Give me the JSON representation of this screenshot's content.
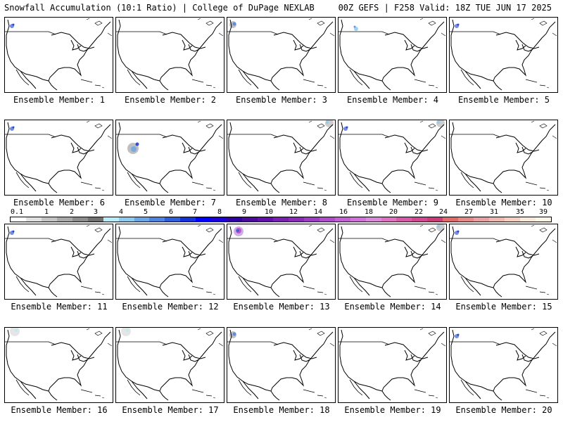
{
  "header": {
    "left": "Snowfall Accumulation (10:1 Ratio) | College of DuPage NEXLAB",
    "right": "00Z GEFS | F258 Valid: 18Z TUE JUN 17 2025"
  },
  "members": [
    {
      "label": "Ensemble Member: 1",
      "snow": [
        "pnw-small"
      ]
    },
    {
      "label": "Ensemble Member: 2",
      "snow": []
    },
    {
      "label": "Ensemble Member: 3",
      "snow": [
        "pnw-medium"
      ]
    },
    {
      "label": "Ensemble Member: 4",
      "snow": [
        "rockies-small"
      ]
    },
    {
      "label": "Ensemble Member: 5",
      "snow": [
        "pnw-small"
      ]
    },
    {
      "label": "Ensemble Member: 6",
      "snow": [
        "pnw-small"
      ]
    },
    {
      "label": "Ensemble Member: 7",
      "snow": [
        "rockies-large"
      ]
    },
    {
      "label": "Ensemble Member: 8",
      "snow": [
        "canada-ne"
      ]
    },
    {
      "label": "Ensemble Member: 9",
      "snow": [
        "pnw-small",
        "canada-ne"
      ]
    },
    {
      "label": "Ensemble Member: 10",
      "snow": []
    },
    {
      "label": "Ensemble Member: 11",
      "snow": [
        "pnw-small"
      ]
    },
    {
      "label": "Ensemble Member: 12",
      "snow": []
    },
    {
      "label": "Ensemble Member: 13",
      "snow": [
        "pnw-heavy"
      ]
    },
    {
      "label": "Ensemble Member: 14",
      "snow": [
        "canada-ne"
      ]
    },
    {
      "label": "Ensemble Member: 15",
      "snow": [
        "pnw-small"
      ]
    },
    {
      "label": "Ensemble Member: 16",
      "snow": [
        "canada-light"
      ]
    },
    {
      "label": "Ensemble Member: 17",
      "snow": [
        "canada-light"
      ]
    },
    {
      "label": "Ensemble Member: 18",
      "snow": [
        "pnw-medium"
      ]
    },
    {
      "label": "Ensemble Member: 19",
      "snow": []
    },
    {
      "label": "Ensemble Member: 20",
      "snow": [
        "pnw-small"
      ]
    }
  ],
  "colorbar": {
    "labels": [
      "0.1",
      "1",
      "2",
      "3",
      "4",
      "5",
      "6",
      "7",
      "8",
      "9",
      "10",
      "12",
      "14",
      "16",
      "18",
      "20",
      "22",
      "24",
      "27",
      "31",
      "35",
      "39"
    ],
    "colors": [
      "#ffffff",
      "#e0e0e0",
      "#c4c4c4",
      "#a8a8a8",
      "#8c8c8c",
      "#707070",
      "#b8ecf8",
      "#8ccbee",
      "#6aa6e6",
      "#4d84e2",
      "#2e5fd8",
      "#1432d8",
      "#0000ff",
      "#1c00d8",
      "#3000a0",
      "#4a0a9a",
      "#6010a8",
      "#7820b0",
      "#8a2ab8",
      "#9c3cc2",
      "#b04ccc",
      "#c260d4",
      "#d070d8",
      "#d88ad8",
      "#e070c0",
      "#d858a8",
      "#d04890",
      "#c83c78",
      "#e06a6a",
      "#e48888",
      "#e8a0a0",
      "#eeb8b0",
      "#f4cfc0",
      "#fae8d8",
      "#fdf5e6"
    ]
  }
}
